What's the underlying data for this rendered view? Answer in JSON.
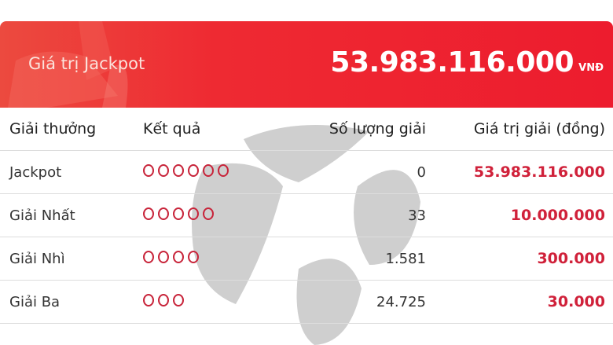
{
  "banner": {
    "label": "Giá trị Jackpot",
    "value": "53.983.116.000",
    "unit": "VNĐ"
  },
  "colors": {
    "accent": "#ed1c2e",
    "prize_value": "#d0213a",
    "ball": "#c8243a"
  },
  "table": {
    "headers": [
      "Giải thưởng",
      "Kết quả",
      "Số lượng giải",
      "Giá trị giải (đồng)"
    ],
    "rows": [
      {
        "prize": "Jackpot",
        "balls": 6,
        "count": "0",
        "value": "53.983.116.000"
      },
      {
        "prize": "Giải Nhất",
        "balls": 5,
        "count": "33",
        "value": "10.000.000"
      },
      {
        "prize": "Giải Nhì",
        "balls": 4,
        "count": "1.581",
        "value": "300.000"
      },
      {
        "prize": "Giải Ba",
        "balls": 3,
        "count": "24.725",
        "value": "30.000"
      }
    ]
  }
}
